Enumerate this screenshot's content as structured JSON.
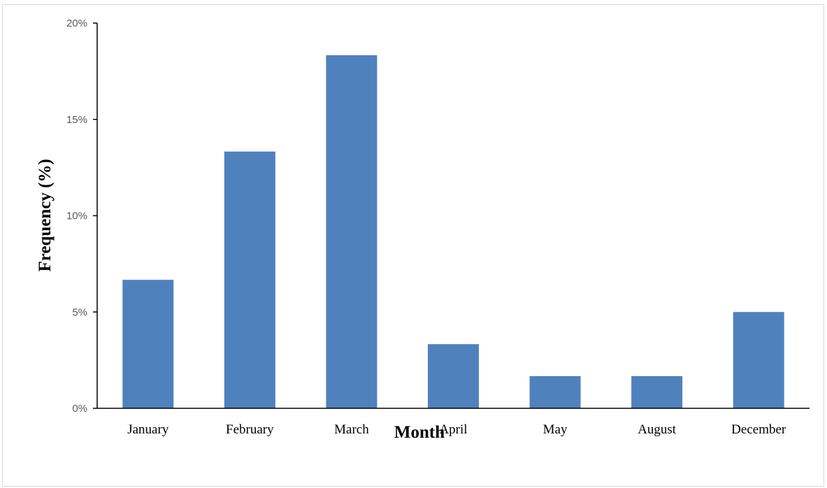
{
  "chart_data": {
    "type": "bar",
    "title": "",
    "xlabel": "Month",
    "ylabel": "Frequency (%)",
    "categories": [
      "January",
      "February",
      "March",
      "April",
      "May",
      "August",
      "December"
    ],
    "values": [
      6.67,
      13.33,
      18.33,
      3.33,
      1.67,
      1.67,
      5.0
    ],
    "yunit": "%",
    "ylim": [
      0,
      20
    ],
    "yticks": [
      0,
      5,
      10,
      15,
      20
    ],
    "ytick_labels": [
      "0%",
      "5%",
      "10%",
      "15%",
      "20%"
    ],
    "grid": false,
    "legend": "none",
    "bar_color": "#4F81BD",
    "axis_color": "#000000"
  }
}
